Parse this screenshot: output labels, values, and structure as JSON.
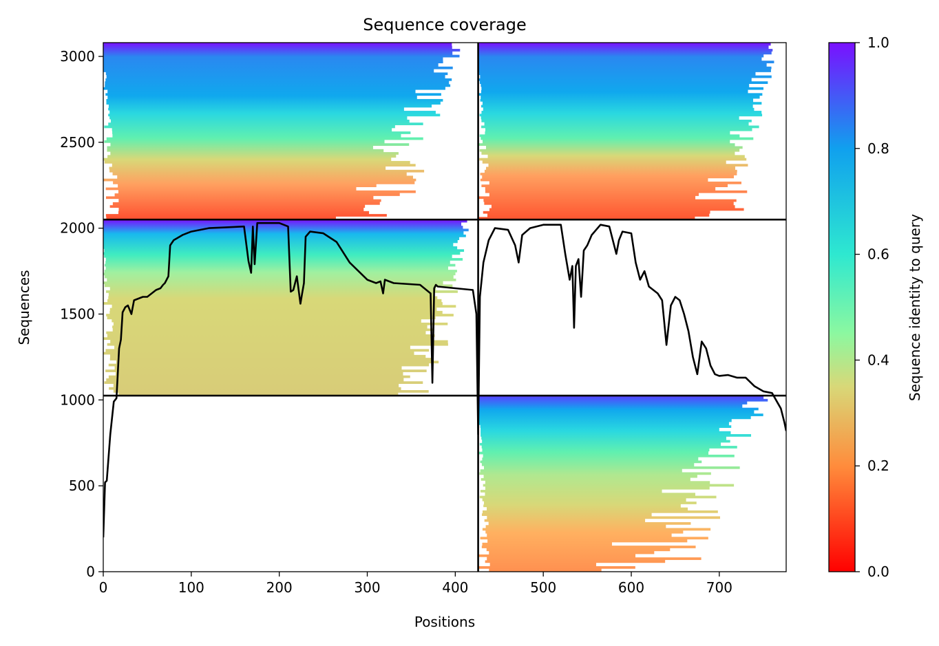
{
  "chart_data": {
    "type": "heatmap",
    "title": "Sequence coverage",
    "xlabel": "Positions",
    "ylabel": "Sequences",
    "xlim": [
      0,
      776
    ],
    "ylim": [
      0,
      3080
    ],
    "x_ticks": [
      0,
      100,
      200,
      300,
      400,
      500,
      600,
      700
    ],
    "y_ticks": [
      0,
      500,
      1000,
      1500,
      2000,
      2500,
      3000
    ],
    "blocks": [
      {
        "name": "block-top-left",
        "x": [
          0,
          426
        ],
        "y": [
          2050,
          3080
        ],
        "fill_ratio": 0.82
      },
      {
        "name": "block-top-right",
        "x": [
          426,
          776
        ],
        "y": [
          2050,
          3080
        ],
        "fill_ratio": 0.86
      },
      {
        "name": "block-middle-left",
        "x": [
          0,
          426
        ],
        "y": [
          1025,
          2050
        ],
        "fill_ratio": 0.9
      },
      {
        "name": "block-bottom-right",
        "x": [
          426,
          776
        ],
        "y": [
          0,
          1025
        ],
        "fill_ratio": 0.72
      }
    ],
    "block_dividers": {
      "x": [
        426
      ],
      "y": [
        1025,
        2050
      ]
    },
    "coverage_line": {
      "x": [
        0,
        2,
        4,
        8,
        12,
        15,
        18,
        20,
        22,
        25,
        28,
        32,
        35,
        40,
        45,
        50,
        55,
        60,
        65,
        68,
        70,
        72,
        74,
        76,
        80,
        90,
        100,
        110,
        120,
        140,
        160,
        165,
        168,
        170,
        172,
        175,
        178,
        180,
        200,
        210,
        213,
        216,
        220,
        224,
        226,
        228,
        230,
        235,
        250,
        265,
        280,
        290,
        300,
        310,
        315,
        318,
        320,
        330,
        360,
        372,
        374,
        376,
        378,
        380,
        400,
        420,
        424,
        426,
        428,
        432,
        438,
        445,
        460,
        468,
        472,
        476,
        485,
        500,
        520,
        525,
        530,
        533,
        535,
        537,
        540,
        543,
        546,
        550,
        555,
        565,
        575,
        583,
        586,
        590,
        600,
        605,
        610,
        615,
        620,
        625,
        630,
        635,
        640,
        645,
        650,
        655,
        660,
        665,
        670,
        675,
        680,
        685,
        690,
        695,
        700,
        710,
        720,
        730,
        740,
        750,
        760,
        770,
        774,
        776
      ],
      "y": [
        200,
        520,
        530,
        800,
        990,
        1010,
        1300,
        1350,
        1510,
        1540,
        1550,
        1500,
        1580,
        1590,
        1600,
        1600,
        1620,
        1640,
        1650,
        1670,
        1680,
        1700,
        1720,
        1900,
        1930,
        1960,
        1980,
        1990,
        2000,
        2005,
        2010,
        1810,
        1740,
        2010,
        1790,
        2030,
        2030,
        2030,
        2030,
        2010,
        1630,
        1640,
        1720,
        1560,
        1620,
        1680,
        1950,
        1980,
        1970,
        1920,
        1800,
        1750,
        1700,
        1680,
        1690,
        1620,
        1700,
        1680,
        1670,
        1620,
        1100,
        1650,
        1670,
        1660,
        1650,
        1640,
        1500,
        800,
        1600,
        1800,
        1930,
        2000,
        1990,
        1900,
        1800,
        1960,
        2000,
        2020,
        2020,
        1850,
        1700,
        1780,
        1420,
        1780,
        1820,
        1600,
        1870,
        1900,
        1960,
        2020,
        2010,
        1850,
        1930,
        1980,
        1970,
        1800,
        1700,
        1750,
        1660,
        1640,
        1620,
        1580,
        1320,
        1550,
        1600,
        1580,
        1500,
        1400,
        1250,
        1150,
        1340,
        1300,
        1200,
        1150,
        1140,
        1145,
        1130,
        1130,
        1080,
        1050,
        1040,
        950,
        870,
        820
      ]
    },
    "colorbar": {
      "label": "Sequence identity to query",
      "ticks": [
        0.0,
        0.2,
        0.4,
        0.6,
        0.8,
        1.0
      ],
      "tick_labels": [
        "0.0",
        "0.2",
        "0.4",
        "0.6",
        "0.8",
        "1.0"
      ],
      "colormap": "rainbow",
      "range": [
        0,
        1
      ]
    }
  }
}
